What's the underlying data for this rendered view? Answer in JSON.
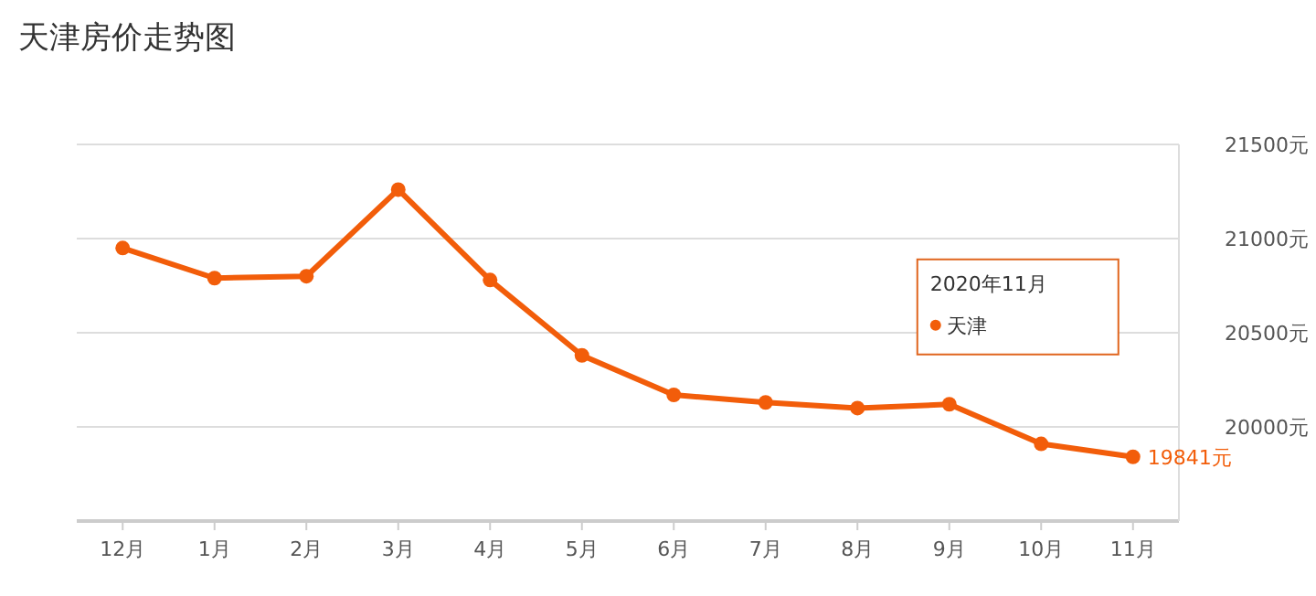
{
  "chart_data": {
    "type": "line",
    "title": "天津房价走势图",
    "categories": [
      "12月",
      "1月",
      "2月",
      "3月",
      "4月",
      "5月",
      "6月",
      "7月",
      "8月",
      "9月",
      "10月",
      "11月"
    ],
    "series": [
      {
        "name": "天津",
        "color": "#f25d0a",
        "values": [
          20950,
          20790,
          20800,
          21260,
          20780,
          20380,
          20170,
          20130,
          20100,
          20120,
          19910,
          19841
        ],
        "value_labels": [
          null,
          null,
          null,
          null,
          null,
          null,
          null,
          null,
          null,
          null,
          null,
          "19841元"
        ]
      }
    ],
    "ylim": [
      19500,
      21500
    ],
    "yticks": [
      {
        "value": 20000,
        "label": "20000元"
      },
      {
        "value": 20500,
        "label": "20500元"
      },
      {
        "value": 21000,
        "label": "21000元"
      },
      {
        "value": 21500,
        "label": "21500元"
      }
    ],
    "grid": "y",
    "marker": "circle",
    "line_style": "solid",
    "legend": "right",
    "annotations": [
      "2020年11月"
    ]
  }
}
